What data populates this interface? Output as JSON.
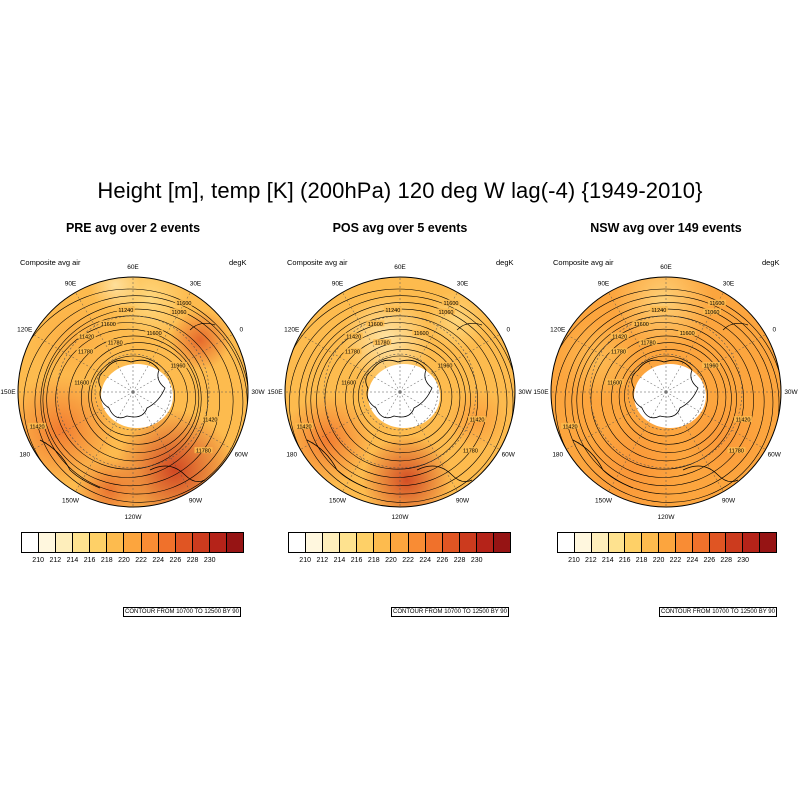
{
  "main_title": "Height [m], temp [K] (200hPa) 120 deg W lag(-4) {1949-2010}",
  "left_string": "Composite avg air",
  "right_string": "degK",
  "contour_info": "CONTOUR FROM 10700 TO 12500 BY 90",
  "lon_labels": [
    "60E",
    "30E",
    "0",
    "30W",
    "60W",
    "90W",
    "120W",
    "150W",
    "180",
    "150E",
    "120E",
    "90E"
  ],
  "colorbar": {
    "labels": [
      "210",
      "212",
      "214",
      "216",
      "218",
      "220",
      "222",
      "224",
      "226",
      "228",
      "230"
    ],
    "colors": [
      "#ffffff",
      "#fff7de",
      "#feeebb",
      "#fee28f",
      "#fed067",
      "#fdbb4e",
      "#fca53e",
      "#f98c34",
      "#f0712b",
      "#e05523",
      "#cc3b1e",
      "#b52319",
      "#961414"
    ]
  },
  "panels": [
    {
      "title": "PRE avg over 2 events",
      "contours": [
        "11780",
        "11600",
        "11420",
        "11240",
        "11060",
        "11420",
        "11600",
        "11780",
        "11600",
        "11420",
        "11780",
        "11600",
        "11960"
      ]
    },
    {
      "title": "POS avg over 5 events",
      "contours": [
        "11780",
        "11600",
        "11420",
        "11240",
        "11060",
        "11420",
        "11600",
        "11780",
        "11600",
        "11420",
        "11780",
        "11600",
        "11960"
      ]
    },
    {
      "title": "NSW avg over 149 events",
      "contours": [
        "11780",
        "11600",
        "11420",
        "11240",
        "11060",
        "11420",
        "11600",
        "11780",
        "11600",
        "11420",
        "11780",
        "11600",
        "11960"
      ]
    }
  ]
}
